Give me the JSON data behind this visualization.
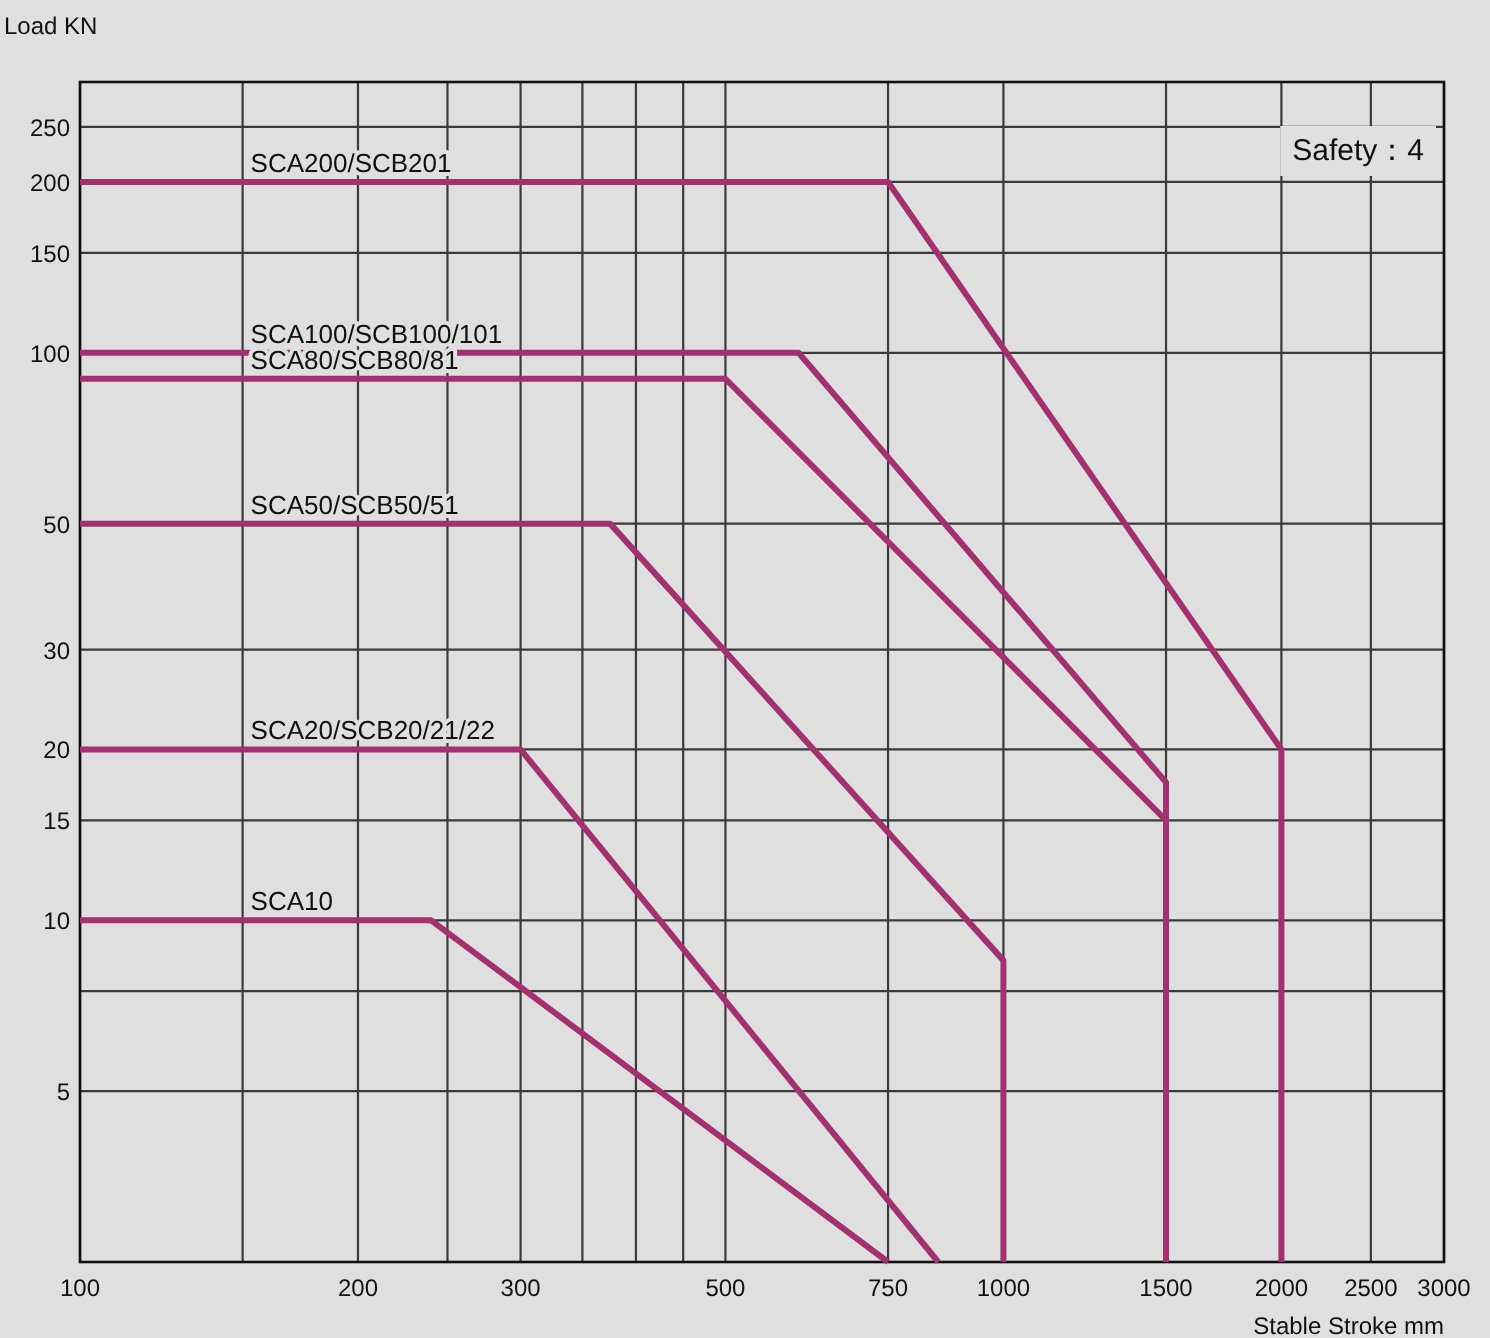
{
  "chart_data": {
    "type": "line",
    "xlabel": "Stable Stroke  mm",
    "ylabel": "Load KN",
    "annotations": [
      "Safety：4"
    ],
    "xlim": [
      100,
      3000
    ],
    "ylim": [
      2.5,
      300
    ],
    "xticks": [
      100,
      {
        "value": 150,
        "label": null
      },
      200,
      {
        "value": 250,
        "label": null
      },
      300,
      {
        "value": 350,
        "label": null
      },
      {
        "value": 400,
        "label": null
      },
      {
        "value": 450,
        "label": null
      },
      500,
      750,
      1000,
      1500,
      2000,
      2500,
      3000
    ],
    "yticks": [
      {
        "value": 2.5,
        "label": null
      },
      5,
      {
        "value": 7.5,
        "label": null
      },
      10,
      15,
      20,
      30,
      50,
      100,
      150,
      200,
      250,
      {
        "value": 300,
        "label": null
      }
    ],
    "grid": true,
    "log": "xy",
    "series": [
      {
        "name": "SCA200/SCB201",
        "color": "#a3306f",
        "x": [
          100,
          750,
          2000,
          2000
        ],
        "values": [
          200,
          200,
          20,
          2.5
        ]
      },
      {
        "name": "SCA100/SCB100/101",
        "color": "#a3306f",
        "x": [
          100,
          600,
          1500,
          1500
        ],
        "values": [
          100,
          100,
          17.5,
          2.5
        ]
      },
      {
        "name": "SCA80/SCB80/81",
        "color": "#a3306f",
        "x": [
          100,
          500,
          1500,
          1500
        ],
        "values": [
          90,
          90,
          15,
          2.5
        ]
      },
      {
        "name": "SCA50/SCB50/51",
        "color": "#a3306f",
        "x": [
          100,
          375,
          1000,
          1000
        ],
        "values": [
          50,
          50,
          8.5,
          2.5
        ]
      },
      {
        "name": "SCA20/SCB20/21/22",
        "color": "#a3306f",
        "x": [
          100,
          300,
          850
        ],
        "values": [
          20,
          20,
          2.5
        ]
      },
      {
        "name": "SCA10",
        "color": "#a3306f",
        "x": [
          100,
          240,
          750
        ],
        "values": [
          10,
          10,
          2.5
        ]
      }
    ]
  }
}
